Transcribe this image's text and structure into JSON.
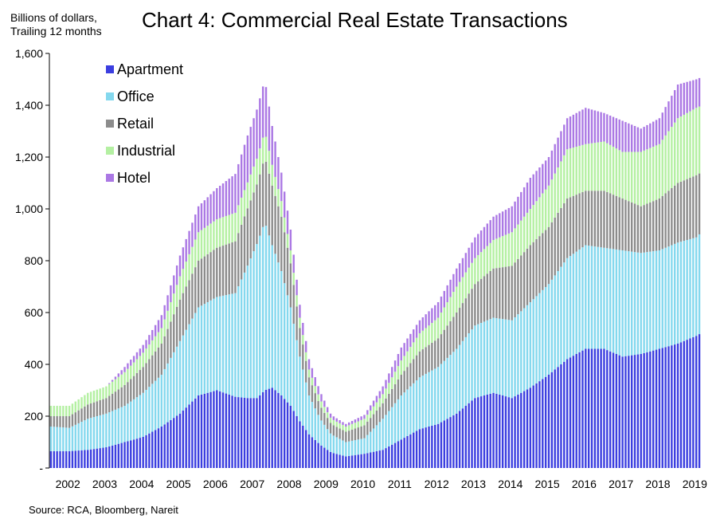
{
  "chart_data": {
    "type": "bar",
    "stacked": true,
    "title": "Chart 4: Commercial Real Estate Transactions",
    "ylabel_lines": [
      "Billions of dollars,",
      "Trailing 12 months"
    ],
    "source": "Source: RCA, Bloomberg, Nareit",
    "ylim": [
      0,
      1600
    ],
    "yticks": [
      "-",
      "200",
      "400",
      "600",
      "800",
      "1,000",
      "1,200",
      "1,400",
      "1,600"
    ],
    "ytick_values": [
      0,
      200,
      400,
      600,
      800,
      1000,
      1200,
      1400,
      1600
    ],
    "year_labels": [
      "2002",
      "2003",
      "2004",
      "2005",
      "2006",
      "2007",
      "2008",
      "2009",
      "2010",
      "2011",
      "2012",
      "2013",
      "2014",
      "2015",
      "2016",
      "2017",
      "2018",
      "2019"
    ],
    "interval": "monthly",
    "legend_position": "top-left",
    "grid": false,
    "anchors": {
      "x": [
        2002.0,
        2002.5,
        2003.0,
        2003.5,
        2004.0,
        2004.5,
        2005.0,
        2005.5,
        2006.0,
        2006.5,
        2007.0,
        2007.3,
        2007.6,
        2007.8,
        2008.0,
        2008.25,
        2008.5,
        2008.75,
        2009.0,
        2009.3,
        2009.6,
        2010.0,
        2010.5,
        2011.0,
        2011.5,
        2012.0,
        2012.5,
        2013.0,
        2013.5,
        2014.0,
        2014.5,
        2015.0,
        2015.5,
        2016.0,
        2016.5,
        2017.0,
        2017.5,
        2018.0,
        2018.5,
        2019.0,
        2019.5,
        2019.75
      ],
      "series": [
        {
          "name": "Apartment",
          "color": "#3b3ee0",
          "values": [
            65,
            65,
            70,
            80,
            100,
            120,
            160,
            210,
            280,
            300,
            275,
            270,
            270,
            300,
            310,
            280,
            240,
            180,
            130,
            90,
            60,
            45,
            55,
            70,
            110,
            150,
            170,
            210,
            270,
            290,
            270,
            310,
            360,
            420,
            460,
            460,
            430,
            440,
            460,
            480,
            510,
            530
          ]
        },
        {
          "name": "Office",
          "color": "#84d8ee",
          "values": [
            95,
            90,
            120,
            130,
            140,
            170,
            200,
            280,
            340,
            360,
            400,
            500,
            600,
            650,
            550,
            480,
            380,
            250,
            150,
            100,
            70,
            55,
            60,
            120,
            170,
            200,
            220,
            250,
            280,
            290,
            300,
            330,
            350,
            390,
            400,
            390,
            410,
            390,
            380,
            390,
            380,
            395
          ]
        },
        {
          "name": "Retail",
          "color": "#8c8c8c",
          "values": [
            40,
            45,
            55,
            60,
            80,
            100,
            120,
            160,
            180,
            190,
            200,
            220,
            230,
            250,
            230,
            210,
            170,
            110,
            70,
            50,
            40,
            40,
            50,
            60,
            80,
            100,
            110,
            140,
            160,
            190,
            210,
            220,
            220,
            230,
            210,
            220,
            200,
            180,
            200,
            230,
            240,
            225
          ]
        },
        {
          "name": "Industrial",
          "color": "#b4f0a2",
          "values": [
            40,
            40,
            45,
            45,
            50,
            55,
            60,
            90,
            110,
            110,
            110,
            100,
            100,
            100,
            80,
            60,
            50,
            40,
            30,
            25,
            20,
            20,
            25,
            35,
            55,
            70,
            80,
            100,
            100,
            110,
            130,
            140,
            160,
            190,
            180,
            190,
            180,
            210,
            210,
            250,
            260,
            255
          ]
        },
        {
          "name": "Hotel",
          "color": "#ab78e4",
          "values": [
            0,
            0,
            0,
            0,
            20,
            30,
            50,
            80,
            100,
            120,
            150,
            180,
            190,
            200,
            150,
            110,
            80,
            50,
            40,
            30,
            15,
            10,
            15,
            30,
            50,
            50,
            60,
            70,
            80,
            90,
            100,
            120,
            110,
            120,
            140,
            110,
            120,
            90,
            100,
            130,
            110,
            110
          ]
        }
      ]
    }
  }
}
